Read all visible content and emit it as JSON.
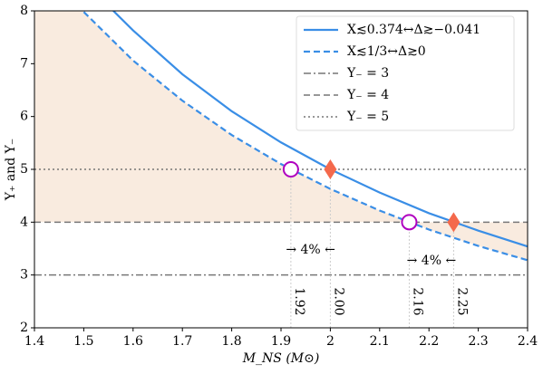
{
  "chart_data": {
    "type": "line",
    "xlabel": "M_NS (M⊙)",
    "ylabel": "Y₊ and Y₋",
    "xlim": [
      1.4,
      2.4
    ],
    "ylim": [
      2,
      8
    ],
    "xticks": [
      1.4,
      1.5,
      1.6,
      1.7,
      1.8,
      1.9,
      2.0,
      2.1,
      2.2,
      2.3,
      2.4
    ],
    "yticks": [
      2,
      3,
      4,
      5,
      6,
      7,
      8
    ],
    "legend": "upper right",
    "fill_color": "#f9ebdf",
    "series": [
      {
        "name": "X≲0.374↔Δ≳−0.041",
        "color": "#3a8ee6",
        "style": "solid",
        "x": [
          1.56,
          1.6,
          1.7,
          1.8,
          1.9,
          2.0,
          2.1,
          2.2,
          2.3,
          2.4
        ],
        "values": [
          8.0,
          7.63,
          6.8,
          6.1,
          5.51,
          5.0,
          4.56,
          4.17,
          3.84,
          3.54
        ]
      },
      {
        "name": "X≲1/3↔Δ≳0",
        "color": "#3a8ee6",
        "style": "dashed",
        "x": [
          1.5,
          1.6,
          1.7,
          1.8,
          1.9,
          2.0,
          2.1,
          2.2,
          2.3,
          2.4
        ],
        "values": [
          7.98,
          7.06,
          6.3,
          5.65,
          5.1,
          4.63,
          4.22,
          3.86,
          3.55,
          3.28
        ]
      }
    ],
    "hlines": [
      {
        "name": "Y₋ = 3",
        "value": 3,
        "style": "dashdot",
        "color": "#777777"
      },
      {
        "name": "Y₋ = 4",
        "value": 4,
        "style": "dashed",
        "color": "#777777"
      },
      {
        "name": "Y₋ = 5",
        "value": 5,
        "style": "dotted",
        "color": "#777777"
      }
    ],
    "markers": [
      {
        "x": 1.92,
        "y": 5,
        "shape": "circle",
        "color": "#b000c0"
      },
      {
        "x": 2.0,
        "y": 5,
        "shape": "diamond",
        "color": "#f4694c"
      },
      {
        "x": 2.16,
        "y": 4,
        "shape": "circle",
        "color": "#b000c0"
      },
      {
        "x": 2.25,
        "y": 4,
        "shape": "diamond",
        "color": "#f4694c"
      }
    ],
    "vlines": [
      1.92,
      {
        "value": 2.0,
        "label": "2.00"
      },
      2.16,
      2.25
    ],
    "annotations": [
      "→  4%  ←",
      "→  4%  ←"
    ]
  }
}
